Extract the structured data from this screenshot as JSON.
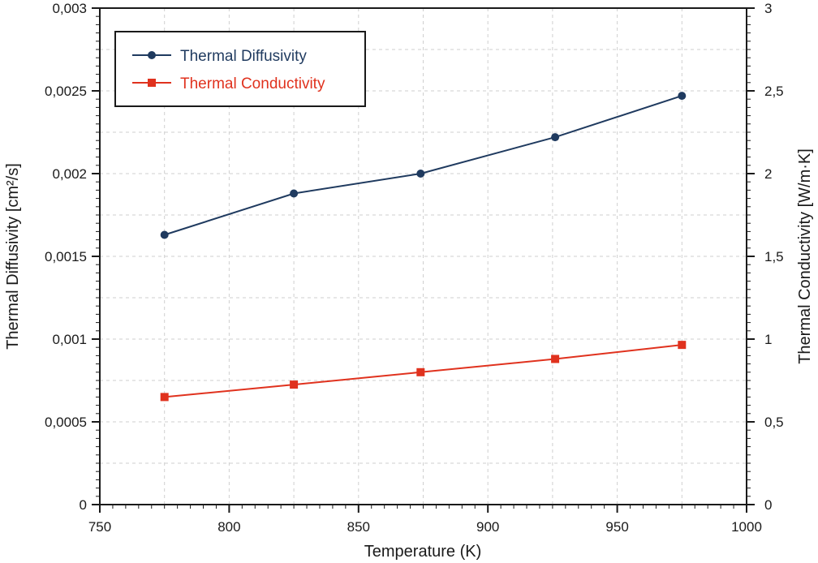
{
  "chart_data": {
    "type": "line",
    "x": [
      775,
      825,
      874,
      926,
      975
    ],
    "xlabel": "Temperature (K)",
    "xlim": [
      750,
      1000
    ],
    "x_ticks": [
      "750",
      "800",
      "850",
      "900",
      "950",
      "1000"
    ],
    "ylabel_left": "Thermal Diffusivity [cm²/s]",
    "ylim_left": [
      0,
      0.003
    ],
    "y_ticks_left": [
      "0",
      "0,0005",
      "0,001",
      "0,0015",
      "0,002",
      "0,0025",
      "0,003"
    ],
    "ylabel_right": "Thermal Conductivity  [W/m·K]",
    "ylim_right": [
      0,
      3
    ],
    "y_ticks_right": [
      "0",
      "0,5",
      "1",
      "1,5",
      "2",
      "2,5",
      "3"
    ],
    "grid": true,
    "legend_position": "top-left",
    "series": [
      {
        "name": "Thermal Diffusivity",
        "axis": "left",
        "marker": "circle",
        "color": "#1f3a5f",
        "values": [
          0.00163,
          0.00188,
          0.002,
          0.00222,
          0.00247
        ]
      },
      {
        "name": "Thermal Conductivity",
        "axis": "right",
        "marker": "square",
        "color": "#e0321e",
        "values": [
          0.65,
          0.725,
          0.8,
          0.88,
          0.965
        ]
      }
    ]
  }
}
